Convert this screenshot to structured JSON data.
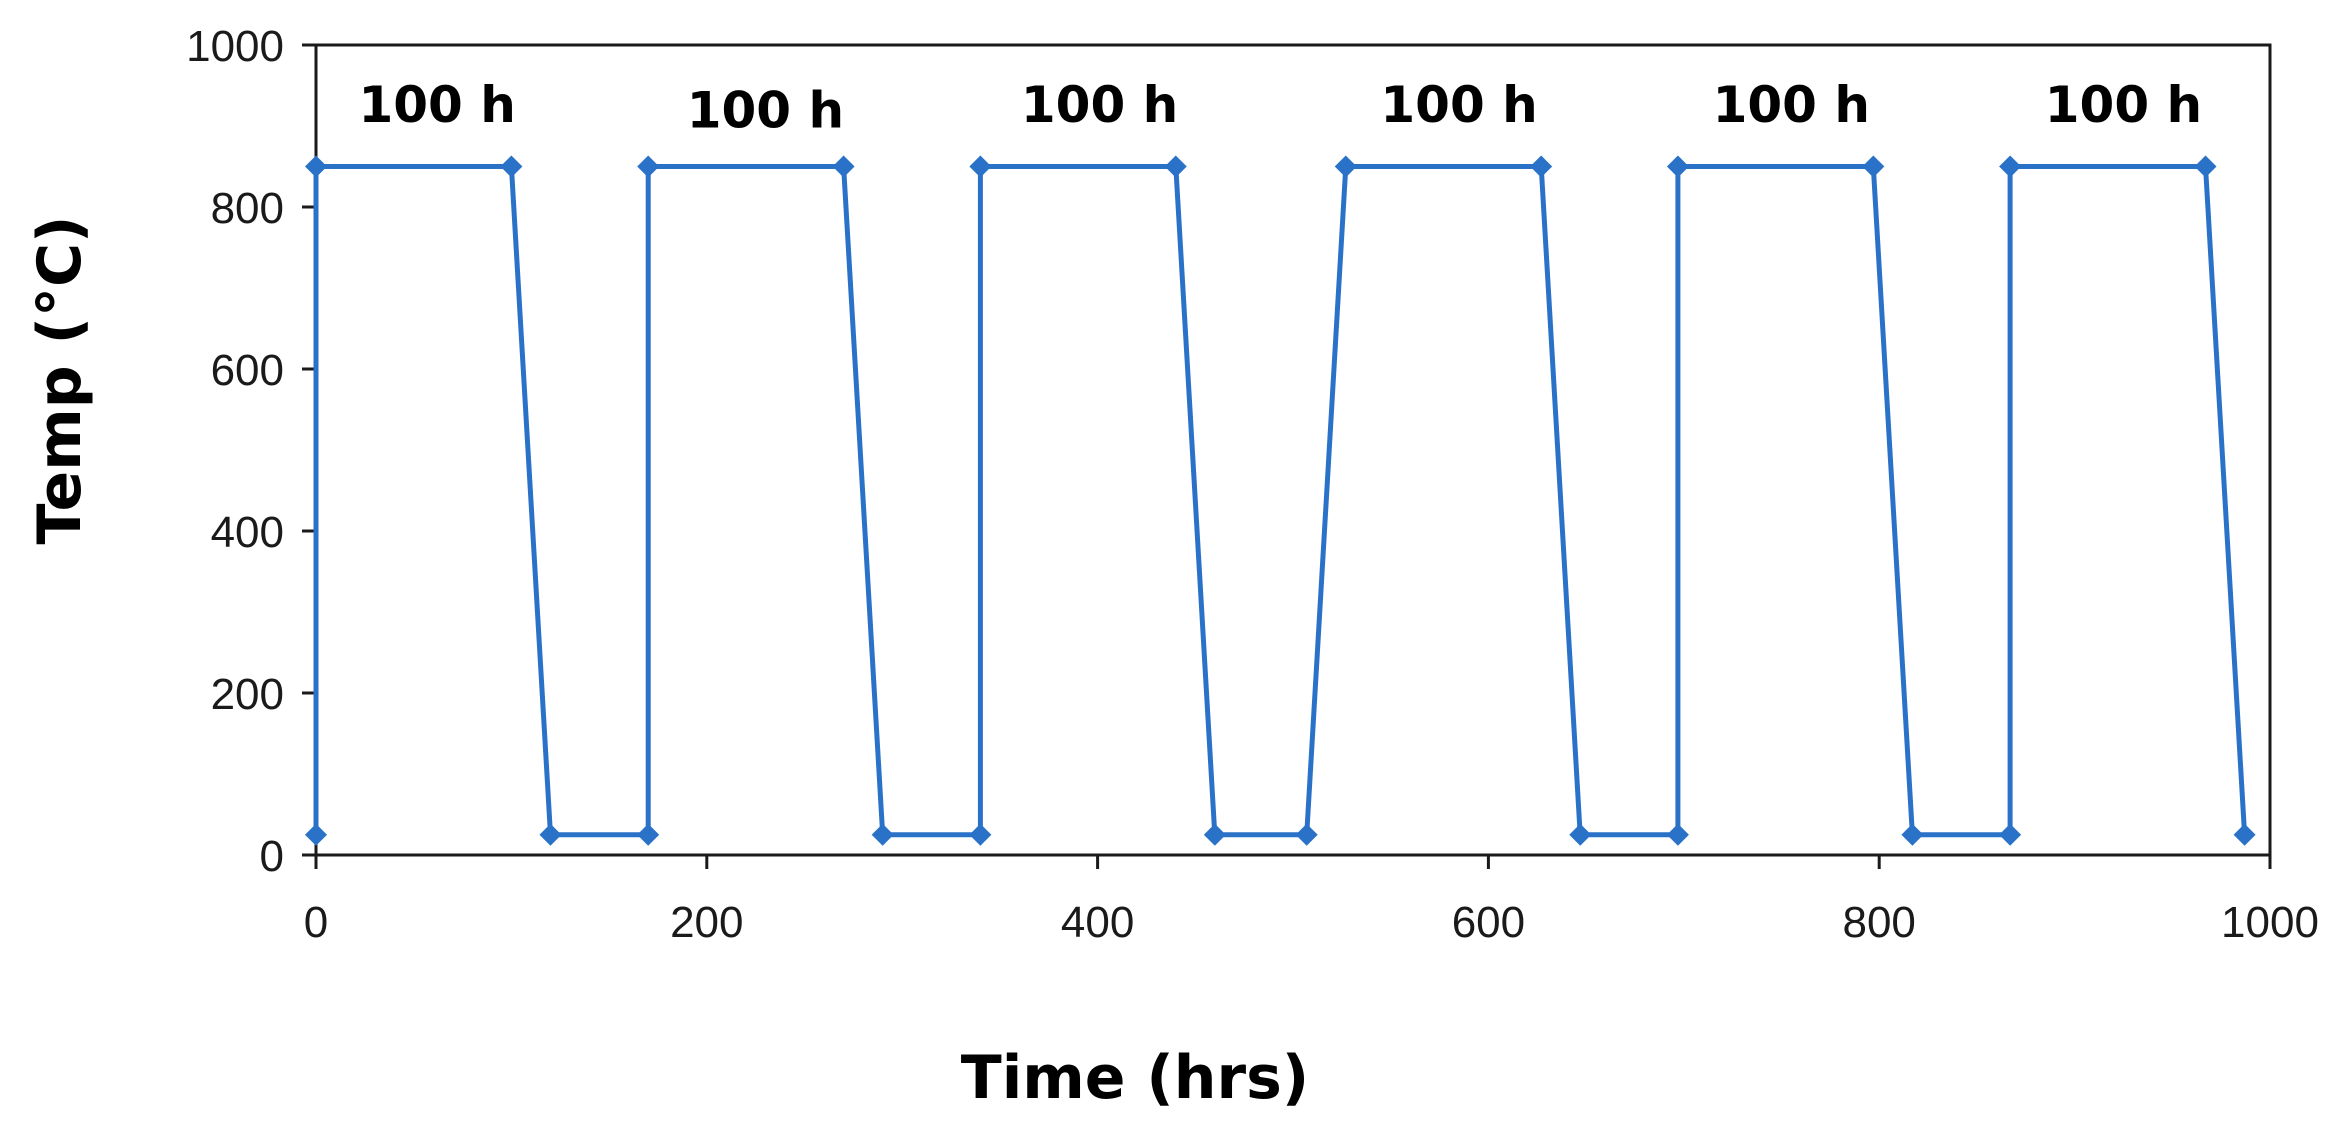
{
  "chart_data": {
    "type": "line",
    "title": "",
    "xlabel": "Time (hrs)",
    "ylabel": "Temp (°C)",
    "xlim": [
      0,
      1000
    ],
    "ylim": [
      0,
      1000
    ],
    "x_ticks": [
      "0",
      "200",
      "400",
      "600",
      "800",
      "1000"
    ],
    "y_ticks": [
      "0",
      "200",
      "400",
      "600",
      "800",
      "1000"
    ],
    "grid": false,
    "legend": "none",
    "series": [
      {
        "color": "#2a72c8",
        "marker": "diamond",
        "points": [
          [
            0,
            25
          ],
          [
            0,
            850
          ],
          [
            100,
            850
          ],
          [
            120,
            25
          ],
          [
            170,
            25
          ],
          [
            170,
            850
          ],
          [
            270,
            850
          ],
          [
            290,
            25
          ],
          [
            340,
            25
          ],
          [
            340,
            850
          ],
          [
            440,
            850
          ],
          [
            460,
            25
          ],
          [
            507,
            25
          ],
          [
            527,
            850
          ],
          [
            627,
            850
          ],
          [
            647,
            25
          ],
          [
            697,
            25
          ],
          [
            697,
            850
          ],
          [
            797,
            850
          ],
          [
            817,
            25
          ],
          [
            867,
            25
          ],
          [
            867,
            850
          ],
          [
            967,
            850
          ],
          [
            987,
            25
          ]
        ]
      }
    ],
    "annotations": [
      {
        "text": "100 h",
        "x": 62,
        "y": 905
      },
      {
        "text": "100 h",
        "x": 230,
        "y": 898
      },
      {
        "text": "100 h",
        "x": 401,
        "y": 905
      },
      {
        "text": "100 h",
        "x": 585,
        "y": 905
      },
      {
        "text": "100 h",
        "x": 755,
        "y": 905
      },
      {
        "text": "100 h",
        "x": 925,
        "y": 905
      }
    ]
  }
}
